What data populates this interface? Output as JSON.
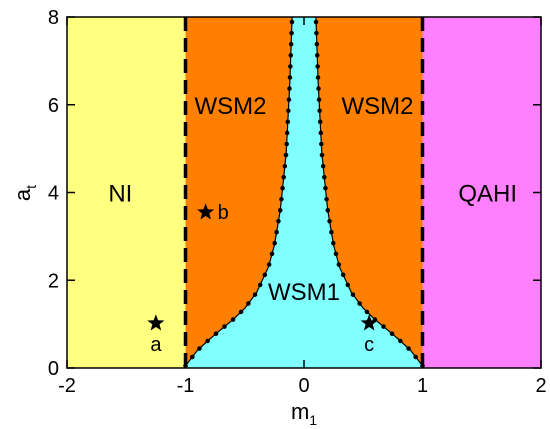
{
  "chart_data": {
    "type": "area",
    "xlabel": "m",
    "xlabel_sub": "1",
    "ylabel": "a",
    "ylabel_sub": "t",
    "xlim": [
      -2,
      2
    ],
    "ylim": [
      0,
      8
    ],
    "xticks": [
      "-2",
      "-1",
      "0",
      "1",
      "2"
    ],
    "yticks": [
      "0",
      "2",
      "4",
      "6",
      "8"
    ],
    "colors": {
      "NI": "#ffff80",
      "WSM2": "#ff8000",
      "WSM1": "#80ffff",
      "QAHI": "#ff80ff"
    },
    "regions": [
      {
        "label": "NI",
        "x_range": [
          -2,
          -1
        ],
        "label_at": [
          -1.55,
          4.0
        ]
      },
      {
        "label": "WSM2",
        "x_range": [
          -1,
          1
        ],
        "label_at": [
          -0.62,
          6.0
        ]
      },
      {
        "label": "WSM2",
        "x_range": [
          -1,
          1
        ],
        "label_at": [
          0.62,
          6.0
        ]
      },
      {
        "label": "WSM1",
        "label_at": [
          0.0,
          1.75
        ]
      },
      {
        "label": "QAHI",
        "x_range": [
          1,
          2
        ],
        "label_at": [
          1.55,
          4.0
        ]
      }
    ],
    "boundary_right": {
      "x": [
        1.0,
        0.9,
        0.8,
        0.7,
        0.6,
        0.5,
        0.4,
        0.3,
        0.25,
        0.2,
        0.15,
        0.12,
        0.1
      ],
      "y": [
        0.05,
        0.4,
        0.65,
        0.88,
        1.1,
        1.36,
        1.72,
        2.3,
        2.8,
        3.6,
        4.9,
        6.5,
        8.0
      ]
    },
    "vertical_dashed_lines": [
      -1,
      1
    ],
    "markers": [
      {
        "label": "a",
        "x": -1.25,
        "y": 1.02
      },
      {
        "label": "b",
        "x": -0.83,
        "y": 3.55
      },
      {
        "label": "c",
        "x": 0.55,
        "y": 1.02
      }
    ]
  }
}
